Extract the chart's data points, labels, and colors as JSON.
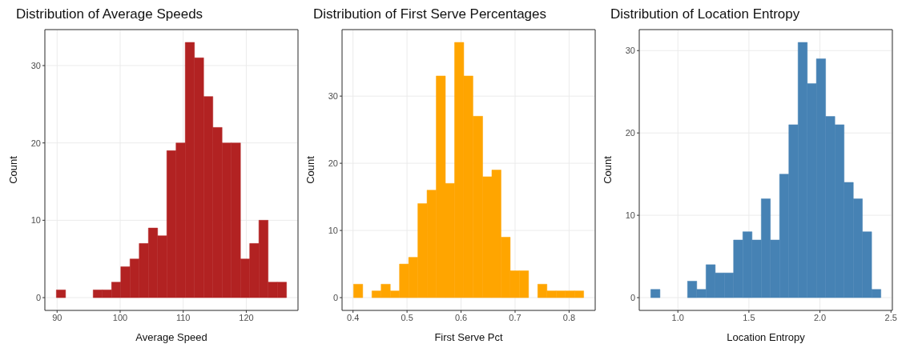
{
  "chart_data": [
    {
      "type": "histogram",
      "title": "Distribution of Average Speeds",
      "xlabel": "Average Speed",
      "ylabel": "Count",
      "color": "#b22222",
      "bins": [
        89.88,
        91.34,
        92.8,
        94.26,
        95.72,
        97.18,
        98.64,
        100.1,
        101.56,
        103.02,
        104.48,
        105.94,
        107.4,
        108.86,
        110.32,
        111.78,
        113.24,
        114.7,
        116.16,
        117.62,
        119.08,
        120.54,
        122.0,
        123.46,
        124.92,
        126.38
      ],
      "values": [
        1,
        0,
        0,
        0,
        1,
        1,
        2,
        4,
        5,
        7,
        9,
        8,
        19,
        20,
        33,
        31,
        26,
        22,
        20,
        20,
        5,
        7,
        10,
        2,
        2
      ],
      "xlim": [
        88.06,
        128.2
      ],
      "xticks": [
        90,
        100,
        110,
        120
      ],
      "ylim": [
        -1.65,
        34.65
      ],
      "yticks": [
        0,
        10,
        20,
        30
      ],
      "grid": true
    },
    {
      "type": "histogram",
      "title": "Distribution of First Serve Percentages",
      "xlabel": "First Serve Pct",
      "ylabel": "Count",
      "color": "#ffa500",
      "bins": [
        0.401,
        0.418,
        0.435,
        0.452,
        0.469,
        0.486,
        0.503,
        0.52,
        0.537,
        0.554,
        0.571,
        0.588,
        0.605,
        0.622,
        0.64,
        0.657,
        0.674,
        0.691,
        0.708,
        0.725,
        0.742,
        0.759,
        0.776,
        0.793,
        0.81,
        0.827
      ],
      "values": [
        2,
        0,
        1,
        2,
        1,
        5,
        6,
        14,
        16,
        33,
        17,
        38,
        33,
        27,
        18,
        19,
        9,
        4,
        4,
        0,
        2,
        1,
        1,
        1,
        1
      ],
      "xlim": [
        0.3797,
        0.8483
      ],
      "xticks": [
        0.4,
        0.5,
        0.6,
        0.7,
        0.8
      ],
      "ylim": [
        -1.9,
        39.9
      ],
      "yticks": [
        0,
        10,
        20,
        30
      ],
      "grid": true
    },
    {
      "type": "histogram",
      "title": "Distribution of Location Entropy",
      "xlabel": "Location Entropy",
      "ylabel": "Count",
      "color": "#4682b4",
      "bins": [
        0.809,
        0.874,
        0.939,
        1.003,
        1.068,
        1.133,
        1.198,
        1.263,
        1.327,
        1.392,
        1.457,
        1.522,
        1.587,
        1.651,
        1.716,
        1.781,
        1.846,
        1.911,
        1.975,
        2.04,
        2.105,
        2.17,
        2.235,
        2.299,
        2.364,
        2.429
      ],
      "values": [
        1,
        0,
        0,
        0,
        2,
        1,
        4,
        3,
        3,
        7,
        8,
        7,
        12,
        7,
        15,
        21,
        31,
        26,
        29,
        22,
        21,
        14,
        12,
        8,
        1
      ],
      "xlim": [
        0.728,
        2.51
      ],
      "xticks": [
        {
          "value": 1.0,
          "label": "1.0"
        },
        {
          "value": 1.5,
          "label": "1.5"
        },
        {
          "value": 2.0,
          "label": "2.0"
        },
        {
          "value": 2.5,
          "label": "2.5"
        }
      ],
      "ylim": [
        -1.55,
        32.55
      ],
      "yticks": [
        0,
        10,
        20,
        30
      ],
      "grid": true
    }
  ]
}
